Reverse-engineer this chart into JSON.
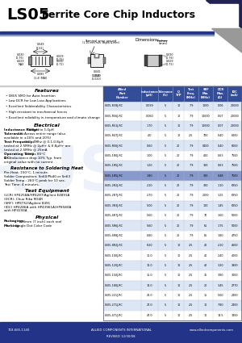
{
  "title_part": "LS05",
  "title_desc": "Ferrite Core Chip Inductors",
  "header_bg": "#003399",
  "bg_color": "#ffffff",
  "table_header_color": "#334d99",
  "table_alt_color": "#dce6f5",
  "table_highlight_color": "#8899cc",
  "table_rows": [
    [
      "LS05-R39J-RC",
      "0.039",
      "5",
      "10",
      "7.9",
      "1000",
      "0.06",
      "20000"
    ],
    [
      "LS05-R56J-RC",
      "0.060",
      "5",
      "10",
      "7.9",
      "10000",
      "0.07",
      "20000"
    ],
    [
      "LS05-R51J-RC",
      "1.70",
      "5",
      "10",
      "7.9",
      "10000",
      "0.07",
      "20000"
    ],
    [
      "LS05-R47J-RC",
      "4.0",
      "5",
      "10",
      "2.5",
      "700",
      "0.40",
      "6000"
    ],
    [
      "LS05-R56J-RC",
      "0.60",
      "5",
      "20",
      "7.9",
      "0400",
      "0.40",
      "8000"
    ],
    [
      "LS05-1R0J-RC",
      "1.00",
      "5",
      "20",
      "7.9",
      "400",
      "0.63",
      "7500"
    ],
    [
      "LS05-1R5J-RC",
      "1.20",
      "5",
      "20",
      "7.9",
      "300",
      "0.63",
      "7500"
    ],
    [
      "LS05-1R5J-RC",
      "1.80",
      "5",
      "20",
      "7.9",
      "300",
      "0.48",
      "7500"
    ],
    [
      "LS05-2R2J-RC",
      "2.10",
      "5",
      "20",
      "7.9",
      "300",
      "1.10",
      "6250"
    ],
    [
      "LS05-2R7J-RC",
      "2.70",
      "5",
      "20",
      "7.9",
      "2000",
      "1.25",
      "6250"
    ],
    [
      "LS05-3R3J-RC",
      "5.00",
      "5",
      "20",
      "7.9",
      "100",
      "1.45",
      "6250"
    ],
    [
      "LS05-4R7J-RC",
      "5.60",
      "5",
      "20",
      "7.9",
      "70",
      "1.60",
      "5000"
    ],
    [
      "LS05-5R6J-RC",
      "5.60",
      "5",
      "20",
      "7.9",
      "65",
      "1.75",
      "5000"
    ],
    [
      "LS05-6R8J-RC",
      "6.80",
      "5",
      "20",
      "7.9",
      "65",
      "1.80",
      "4750"
    ],
    [
      "LS05-8R2J-RC",
      "8.20",
      "5",
      "10",
      "2.5",
      "40",
      "2.10",
      "4600"
    ],
    [
      "LS05-100J-RC",
      "10.0",
      "5",
      "10",
      "2.5",
      "40",
      "2.40",
      "4000"
    ],
    [
      "LS05-120J-RC",
      "12.0",
      "5",
      "10",
      "2.5",
      "40",
      "3.20",
      "3800"
    ],
    [
      "LS05-150J-RC",
      "15.0",
      "5",
      "10",
      "2.5",
      "35",
      "3.80",
      "3000"
    ],
    [
      "LS05-180J-RC",
      "18.0",
      "5",
      "10",
      "2.5",
      "20",
      "3.45",
      "2770"
    ],
    [
      "LS05-221J-RC",
      "22.0",
      "5",
      "10",
      "2.5",
      "15",
      "5.60",
      "2400"
    ],
    [
      "LS05-271J-RC",
      "27.0",
      "5",
      "10",
      "2.5",
      "10",
      "7.80",
      "2400"
    ],
    [
      "LS05-471J-RC",
      "47.0",
      "5",
      "10",
      "2.5",
      "10",
      "14.5",
      "1300"
    ]
  ],
  "features": [
    "0805 SMD for Auto Insertion",
    "Low DCR for Low Loss Applications",
    "Excellent Solderability Characteristics",
    "High resistant to mechanical forces",
    "Excellent reliability in temperature and climate change"
  ],
  "footer_phone": "718-665-1140",
  "footer_company": "ALLIED COMPONENTS INTERNATIONAL",
  "footer_web": "www.alliedcomponents.com",
  "footer_revised": "REVISED 12/30/08"
}
